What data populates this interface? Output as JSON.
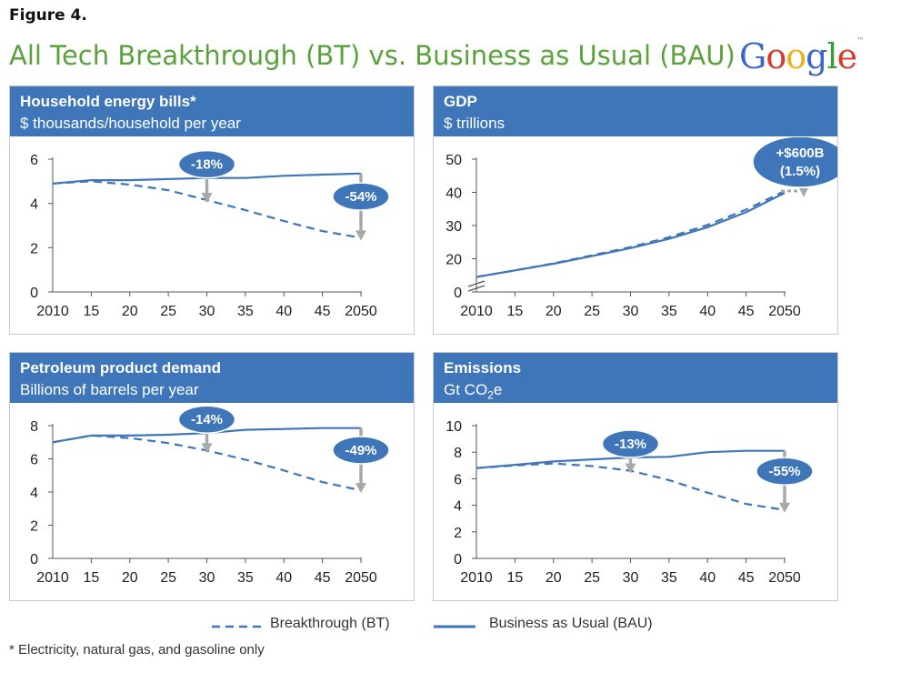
{
  "figure_label": "Figure 4.",
  "title": "All Tech Breakthrough (BT) vs. Business as Usual (BAU)",
  "logo": {
    "letters": [
      {
        "ch": "G",
        "color": "#3b67c8"
      },
      {
        "ch": "o",
        "color": "#d63b2d"
      },
      {
        "ch": "o",
        "color": "#e8b21c"
      },
      {
        "ch": "g",
        "color": "#3b67c8"
      },
      {
        "ch": "l",
        "color": "#3b9b3b"
      },
      {
        "ch": "e",
        "color": "#d63b2d"
      }
    ],
    "tm": "™"
  },
  "colors": {
    "header": "#3f76b9",
    "line": "#3f76b9",
    "bubble": "#3f76b9",
    "arrow": "#a8a8a8",
    "title": "#5aa23b"
  },
  "legend": {
    "bt_label": "Breakthrough (BT)",
    "bau_label": "Business as Usual (BAU)"
  },
  "footnote": "* Electricity, natural gas, and gasoline only",
  "chart_data": [
    {
      "type": "line",
      "title": "Household energy bills*",
      "subtitle": "$ thousands/household per year",
      "x": [
        2010,
        2015,
        2020,
        2025,
        2030,
        2035,
        2040,
        2045,
        2050
      ],
      "x_tick_labels": [
        "2010",
        "15",
        "20",
        "25",
        "30",
        "35",
        "40",
        "45",
        "2050"
      ],
      "ylim": [
        0,
        6
      ],
      "yticks": [
        0,
        2,
        4,
        6
      ],
      "axis_break": false,
      "series": [
        {
          "name": "Business as Usual (BAU)",
          "style": "solid",
          "values": [
            4.9,
            5.05,
            5.05,
            5.1,
            5.15,
            5.15,
            5.25,
            5.3,
            5.35
          ]
        },
        {
          "name": "Breakthrough (BT)",
          "style": "dashed",
          "values": [
            4.9,
            5.0,
            4.85,
            4.6,
            4.15,
            3.7,
            3.2,
            2.75,
            2.45
          ]
        }
      ],
      "annotations": [
        {
          "text": "-18%",
          "x": 2030,
          "from": 5.15,
          "to": 4.15
        },
        {
          "text": "-54%",
          "x": 2050,
          "from": 5.35,
          "to": 2.45
        }
      ]
    },
    {
      "type": "line",
      "title": "GDP",
      "subtitle": "$ trillions",
      "x": [
        2010,
        2015,
        2020,
        2025,
        2030,
        2035,
        2040,
        2045,
        2050
      ],
      "x_tick_labels": [
        "2010",
        "15",
        "20",
        "25",
        "30",
        "35",
        "40",
        "45",
        "2050"
      ],
      "ylim": [
        10,
        50
      ],
      "yticks": [
        0,
        20,
        30,
        40,
        50
      ],
      "axis_break": true,
      "series": [
        {
          "name": "Business as Usual (BAU)",
          "style": "solid",
          "values": [
            14.5,
            16.5,
            18.5,
            20.8,
            23.2,
            26.0,
            29.5,
            34.0,
            39.8
          ]
        },
        {
          "name": "Breakthrough (BT)",
          "style": "dashed",
          "values": [
            14.5,
            16.5,
            18.6,
            21.0,
            23.5,
            26.5,
            30.2,
            34.8,
            40.4
          ]
        }
      ],
      "annotations": [
        {
          "text": "+$600B",
          "text2": "(1.5%)",
          "x": 2050,
          "from": 40.4,
          "to": 39.8
        }
      ]
    },
    {
      "type": "line",
      "title": "Petroleum product demand",
      "subtitle": "Billions of barrels per year",
      "x": [
        2010,
        2015,
        2020,
        2025,
        2030,
        2035,
        2040,
        2045,
        2050
      ],
      "x_tick_labels": [
        "2010",
        "15",
        "20",
        "25",
        "30",
        "35",
        "40",
        "45",
        "2050"
      ],
      "ylim": [
        0,
        8
      ],
      "yticks": [
        0,
        2,
        4,
        6,
        8
      ],
      "axis_break": false,
      "series": [
        {
          "name": "Business as Usual (BAU)",
          "style": "solid",
          "values": [
            7.0,
            7.4,
            7.4,
            7.45,
            7.55,
            7.75,
            7.8,
            7.85,
            7.85
          ]
        },
        {
          "name": "Breakthrough (BT)",
          "style": "dashed",
          "values": [
            7.0,
            7.4,
            7.25,
            6.95,
            6.5,
            5.95,
            5.3,
            4.6,
            4.1
          ]
        }
      ],
      "annotations": [
        {
          "text": "-14%",
          "x": 2030,
          "from": 7.55,
          "to": 6.5
        },
        {
          "text": "-49%",
          "x": 2050,
          "from": 7.85,
          "to": 4.1
        }
      ]
    },
    {
      "type": "line",
      "title": "Emissions",
      "subtitle": "Gt CO2e",
      "x": [
        2010,
        2015,
        2020,
        2025,
        2030,
        2035,
        2040,
        2045,
        2050
      ],
      "x_tick_labels": [
        "2010",
        "15",
        "20",
        "25",
        "30",
        "35",
        "40",
        "45",
        "2050"
      ],
      "ylim": [
        0,
        10
      ],
      "yticks": [
        0,
        2,
        4,
        6,
        8,
        10
      ],
      "axis_break": false,
      "series": [
        {
          "name": "Business as Usual (BAU)",
          "style": "solid",
          "values": [
            6.8,
            7.05,
            7.3,
            7.45,
            7.6,
            7.65,
            8.0,
            8.1,
            8.1
          ]
        },
        {
          "name": "Breakthrough (BT)",
          "style": "dashed",
          "values": [
            6.8,
            7.0,
            7.15,
            6.95,
            6.6,
            5.9,
            4.95,
            4.1,
            3.65
          ]
        }
      ],
      "annotations": [
        {
          "text": "-13%",
          "x": 2030,
          "from": 7.6,
          "to": 6.6
        },
        {
          "text": "-55%",
          "x": 2050,
          "from": 8.1,
          "to": 3.65
        }
      ]
    }
  ]
}
